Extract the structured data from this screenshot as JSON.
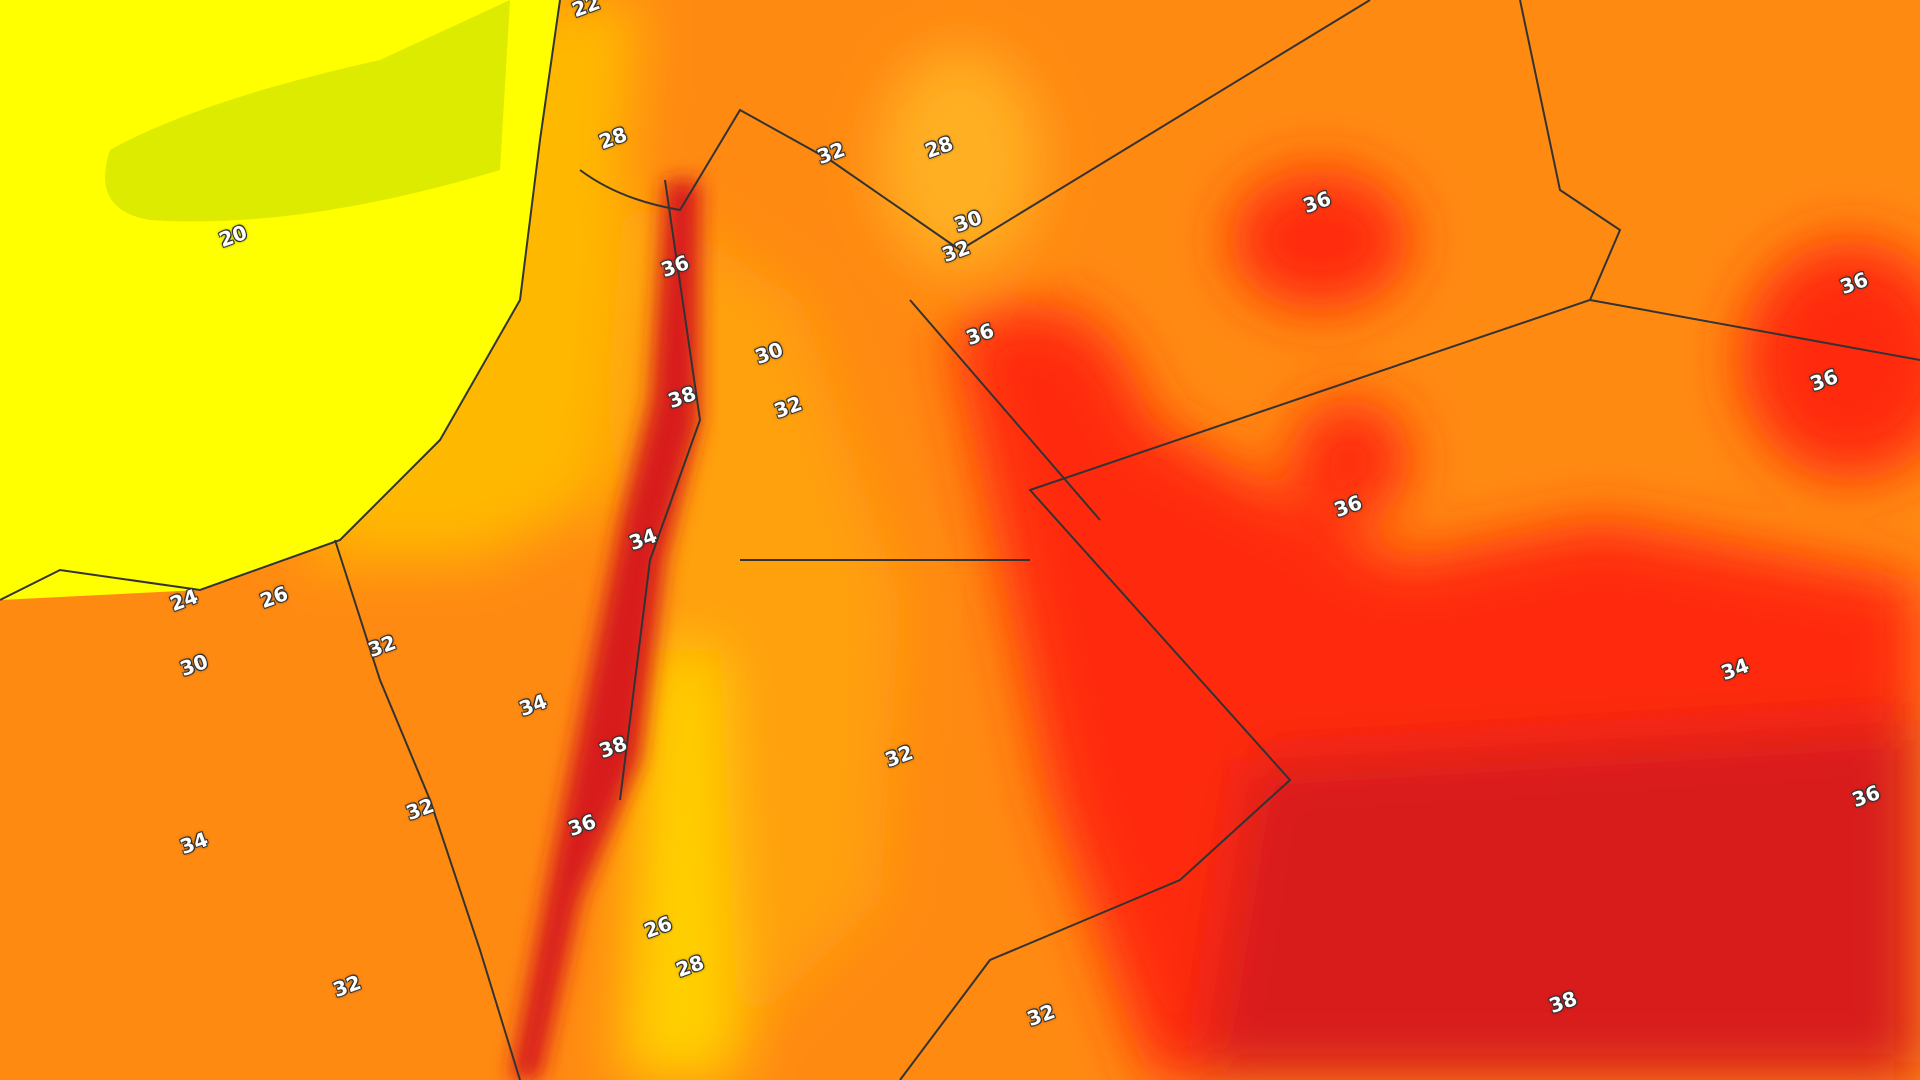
{
  "map": {
    "type": "temperature contour map",
    "colors": {
      "sea_cool": "#ffff00",
      "yellow_green": "#d4e600",
      "warm": "#ffb000",
      "orange": "#ff7a10",
      "hot": "#ff2a10",
      "hottest": "#d81e1e",
      "border": "#333333"
    },
    "contour_labels": [
      {
        "text": "22"
      },
      {
        "text": "28"
      },
      {
        "text": "32"
      },
      {
        "text": "28"
      },
      {
        "text": "30"
      },
      {
        "text": "32"
      },
      {
        "text": "36"
      },
      {
        "text": "20"
      },
      {
        "text": "36"
      },
      {
        "text": "36"
      },
      {
        "text": "36"
      },
      {
        "text": "30"
      },
      {
        "text": "36"
      },
      {
        "text": "38"
      },
      {
        "text": "32"
      },
      {
        "text": "36"
      },
      {
        "text": "34"
      },
      {
        "text": "24"
      },
      {
        "text": "26"
      },
      {
        "text": "32"
      },
      {
        "text": "30"
      },
      {
        "text": "34"
      },
      {
        "text": "34"
      },
      {
        "text": "38"
      },
      {
        "text": "32"
      },
      {
        "text": "32"
      },
      {
        "text": "36"
      },
      {
        "text": "36"
      },
      {
        "text": "34"
      },
      {
        "text": "26"
      },
      {
        "text": "28"
      },
      {
        "text": "32"
      },
      {
        "text": "32"
      },
      {
        "text": "38"
      }
    ]
  }
}
